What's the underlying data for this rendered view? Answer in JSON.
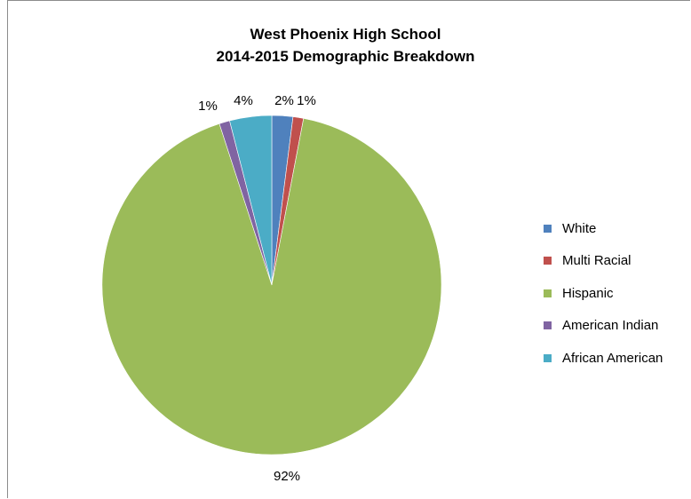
{
  "chart_data": {
    "type": "pie",
    "title": [
      "West Phoenix  High School",
      "2014-2015 Demographic Breakdown"
    ],
    "categories": [
      "White",
      "Multi Racial",
      "Hispanic",
      "American Indian",
      "African American"
    ],
    "values": [
      2,
      1,
      92,
      1,
      4
    ],
    "data_labels": [
      "2%",
      "1%",
      "92%",
      "1%",
      "4%"
    ],
    "colors": [
      "#4f81bd",
      "#c0504d",
      "#9bbb59",
      "#8064a2",
      "#4bacc6"
    ],
    "legend_position": "right"
  }
}
